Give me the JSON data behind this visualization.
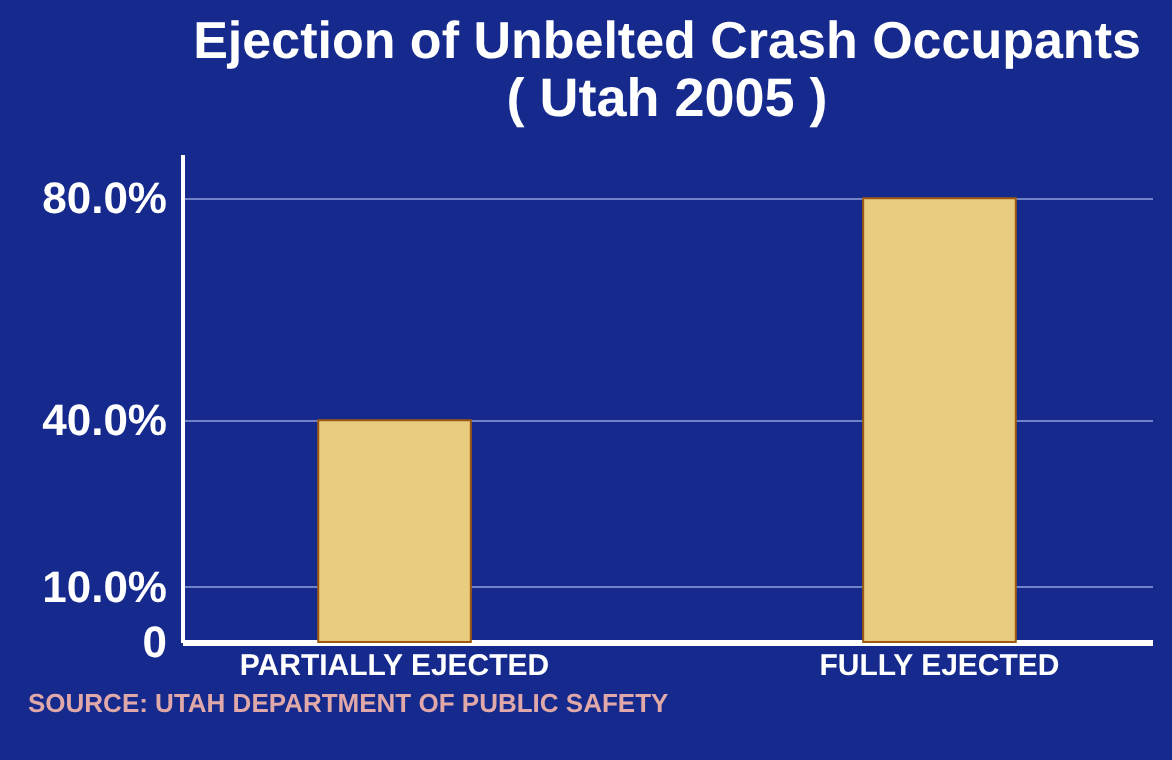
{
  "chart_data": {
    "type": "bar",
    "title": "Ejection of Unbelted Crash Occupants",
    "subtitle": "( Utah 2005 )",
    "categories": [
      "PARTIALLY EJECTED",
      "FULLY EJECTED"
    ],
    "values": [
      40,
      80
    ],
    "color": "#e8cc80",
    "ylim": [
      0,
      88
    ],
    "yticks": [
      {
        "value": 0,
        "label": "0"
      },
      {
        "value": 10,
        "label": "10.0%"
      },
      {
        "value": 40,
        "label": "40.0%"
      },
      {
        "value": 80,
        "label": "80.0%"
      }
    ],
    "grid": true,
    "annotations": [
      "SOURCE:  UTAH DEPARTMENT OF PUBLIC SAFETY"
    ]
  }
}
